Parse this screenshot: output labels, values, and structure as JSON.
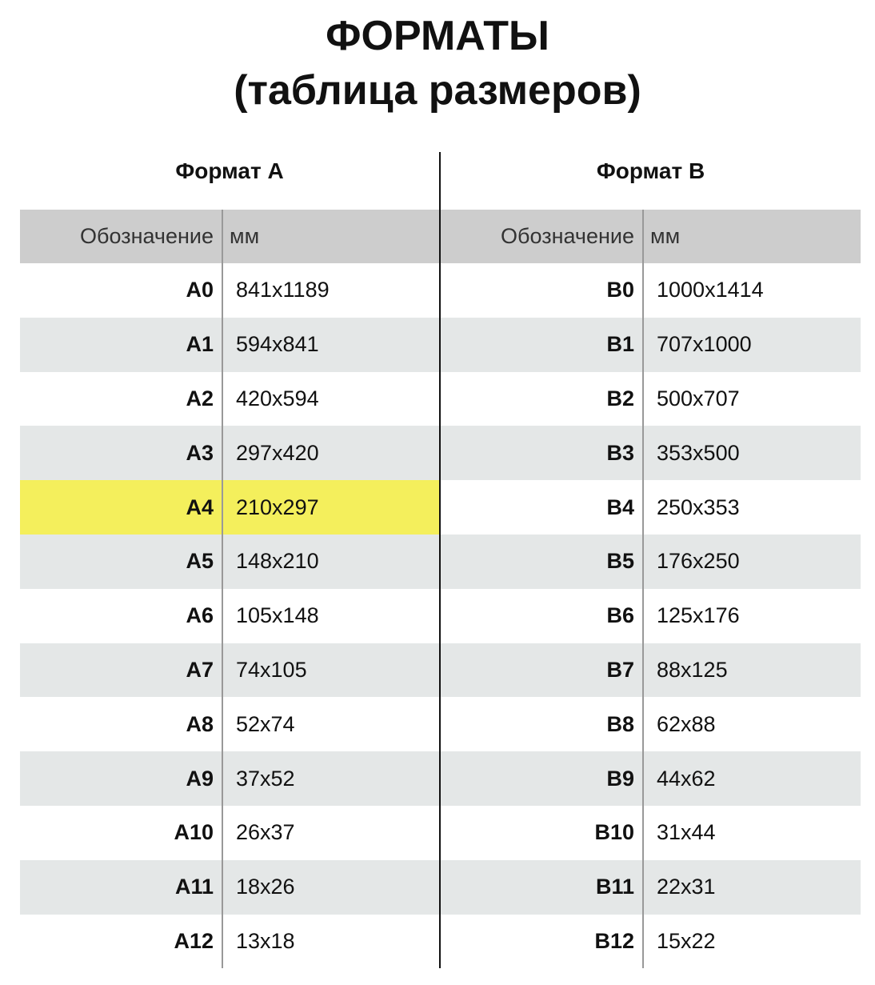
{
  "title": {
    "line1": "ФОРМАТЫ",
    "line2": "(таблица размеров)"
  },
  "highlight_color": "#f4ef5c",
  "tables": [
    {
      "caption": "Формат А",
      "headers": [
        "Обозначение",
        "мм"
      ],
      "highlighted_row": 4,
      "rows": [
        [
          "A0",
          "841x1189"
        ],
        [
          "A1",
          "594x841"
        ],
        [
          "A2",
          "420x594"
        ],
        [
          "A3",
          "297x420"
        ],
        [
          "A4",
          "210x297"
        ],
        [
          "A5",
          "148x210"
        ],
        [
          "A6",
          "105x148"
        ],
        [
          "A7",
          "74x105"
        ],
        [
          "A8",
          "52x74"
        ],
        [
          "A9",
          "37x52"
        ],
        [
          "A10",
          "26x37"
        ],
        [
          "A11",
          "18x26"
        ],
        [
          "A12",
          "13x18"
        ]
      ]
    },
    {
      "caption": "Формат В",
      "headers": [
        "Обозначение",
        "мм"
      ],
      "rows": [
        [
          "B0",
          "1000x1414"
        ],
        [
          "B1",
          "707x1000"
        ],
        [
          "B2",
          "500x707"
        ],
        [
          "B3",
          "353x500"
        ],
        [
          "B4",
          "250x353"
        ],
        [
          "B5",
          "176x250"
        ],
        [
          "B6",
          "125x176"
        ],
        [
          "B7",
          "88x125"
        ],
        [
          "B8",
          "62x88"
        ],
        [
          "B9",
          "44x62"
        ],
        [
          "B10",
          "31x44"
        ],
        [
          "B11",
          "22x31"
        ],
        [
          "B12",
          "15x22"
        ]
      ]
    }
  ]
}
